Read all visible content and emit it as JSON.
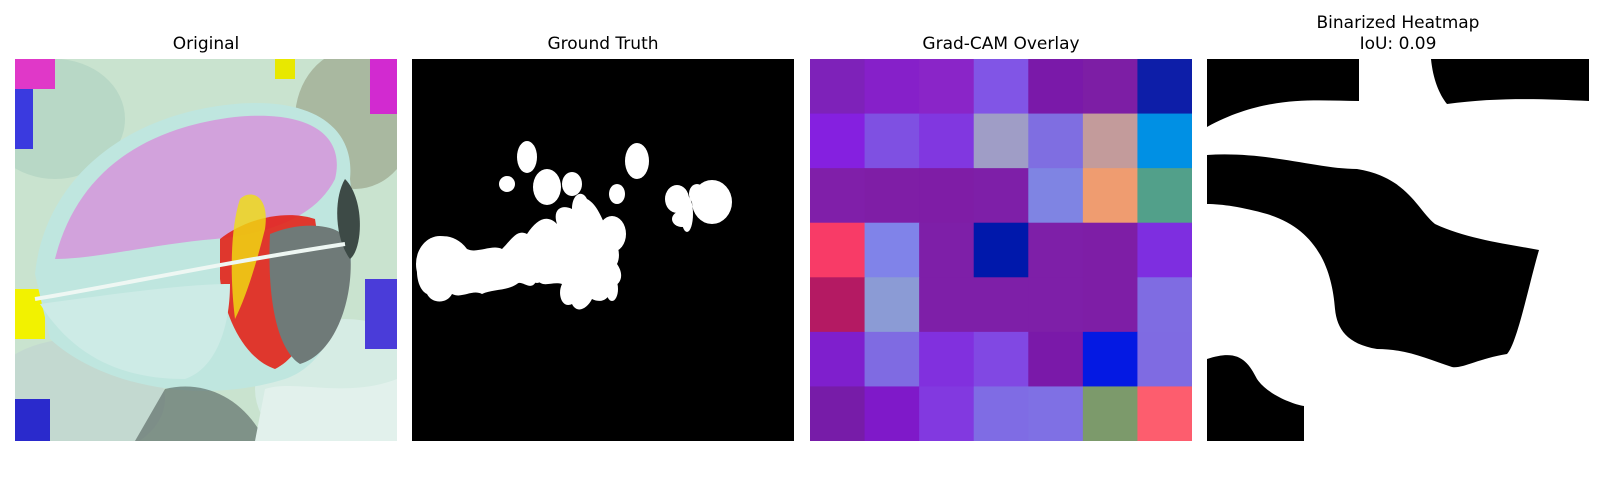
{
  "panels": [
    {
      "title": "Original"
    },
    {
      "title": "Ground Truth"
    },
    {
      "title": "Grad-CAM Overlay"
    },
    {
      "title": "Binarized Heatmap",
      "subtitle": "IoU: 0.09"
    }
  ],
  "gradcam_grid": {
    "rows": 7,
    "cols": 7,
    "colors": [
      [
        "#7e22b9",
        "#8620c9",
        "#8a25c8",
        "#8155e6",
        "#7a19a9",
        "#7d1ea5",
        "#0d1ea8"
      ],
      [
        "#8520e0",
        "#7f50e2",
        "#8137e0",
        "#9f9dc6",
        "#7f6ee1",
        "#c39b9b",
        "#0090e4"
      ],
      [
        "#801fa9",
        "#7f1ea6",
        "#7f1da6",
        "#7e1fa8",
        "#7f84e3",
        "#ef9c70",
        "#52a08a"
      ],
      [
        "#f83b67",
        "#8083e9",
        "#7e1fa8",
        "#0018ab",
        "#7e1fa8",
        "#7e1ea6",
        "#7e2ee0"
      ],
      [
        "#b41a63",
        "#8b9bd5",
        "#7e1fa8",
        "#7e1fa8",
        "#7e1fa8",
        "#7e1ea6",
        "#7f6ce2"
      ],
      [
        "#7f1fcd",
        "#7f6be2",
        "#8130de",
        "#8148e3",
        "#7a19a9",
        "#0419e3",
        "#7f6be2"
      ],
      [
        "#771ca8",
        "#7f19c9",
        "#8239e0",
        "#7f6ce4",
        "#7f70e4",
        "#7c9a6b",
        "#fd5d6e"
      ]
    ]
  }
}
